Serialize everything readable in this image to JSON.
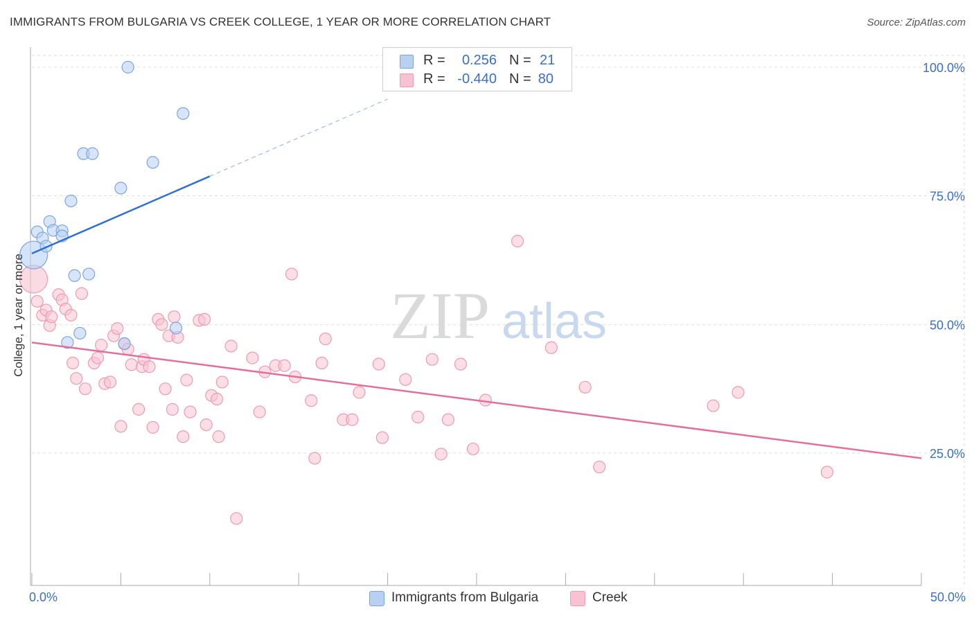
{
  "title": "IMMIGRANTS FROM BULGARIA VS CREEK COLLEGE, 1 YEAR OR MORE CORRELATION CHART",
  "source": "Source: ZipAtlas.com",
  "watermark_zip": "ZIP",
  "watermark_atlas": "atlas",
  "legend": {
    "r_label": "R =",
    "n_label": "N =",
    "bulgaria": {
      "r": "0.256",
      "n": "21"
    },
    "creek": {
      "r": "-0.440",
      "n": "80"
    }
  },
  "bottom_legend": {
    "bulgaria_label": "Immigrants from Bulgaria",
    "creek_label": "Creek"
  },
  "colors": {
    "bulgaria_fill": "#b8d0f2",
    "bulgaria_stroke": "#7aa6e0",
    "bulgaria_line": "#2f6fd0",
    "creek_fill": "#f7c3d2",
    "creek_stroke": "#ee9ab3",
    "creek_line": "#e46f98",
    "axis_text": "#3a6fc9",
    "grid": "#dedede"
  },
  "chart_data": {
    "type": "scatter",
    "title": "IMMIGRANTS FROM BULGARIA VS CREEK COLLEGE, 1 YEAR OR MORE CORRELATION CHART",
    "xlabel": "",
    "ylabel": "College, 1 year or more",
    "xlim": [
      0,
      50
    ],
    "ylim": [
      0,
      102
    ],
    "x_tick_labels": [
      "0.0%",
      "50.0%"
    ],
    "y_ticks": [
      25,
      50,
      75,
      100
    ],
    "y_tick_labels": [
      "25.0%",
      "50.0%",
      "75.0%",
      "100.0%"
    ],
    "series": [
      {
        "name": "Immigrants from Bulgaria",
        "R": 0.256,
        "N": 21,
        "points": [
          [
            0.1,
            63.5,
            "large"
          ],
          [
            0.3,
            68.0
          ],
          [
            0.6,
            66.8
          ],
          [
            0.8,
            65.2
          ],
          [
            1.0,
            70.0
          ],
          [
            1.2,
            68.3
          ],
          [
            1.7,
            68.2
          ],
          [
            1.7,
            67.2
          ],
          [
            2.2,
            74.0
          ],
          [
            2.4,
            59.5
          ],
          [
            2.7,
            48.3
          ],
          [
            2.0,
            46.5
          ],
          [
            3.2,
            59.8
          ],
          [
            2.9,
            83.2
          ],
          [
            3.4,
            83.2
          ],
          [
            5.0,
            76.5
          ],
          [
            5.2,
            46.3
          ],
          [
            5.4,
            100.0
          ],
          [
            6.8,
            81.5
          ],
          [
            8.1,
            49.3
          ],
          [
            8.5,
            91.0
          ]
        ],
        "trend": {
          "x": [
            0,
            10
          ],
          "y": [
            63.8,
            78.8
          ],
          "dashed_x": [
            10,
            20
          ],
          "dashed_y": [
            78.8,
            93.8
          ]
        }
      },
      {
        "name": "Creek",
        "R": -0.44,
        "N": 80,
        "points": [
          [
            0.1,
            58.8,
            "large"
          ],
          [
            0.3,
            54.5
          ],
          [
            0.6,
            51.8
          ],
          [
            0.8,
            52.8
          ],
          [
            1.0,
            49.8
          ],
          [
            1.1,
            51.5
          ],
          [
            1.5,
            55.8
          ],
          [
            1.7,
            54.8
          ],
          [
            1.9,
            53.0
          ],
          [
            2.2,
            51.8
          ],
          [
            2.3,
            42.5
          ],
          [
            2.5,
            39.5
          ],
          [
            2.8,
            56.0
          ],
          [
            3.0,
            37.5
          ],
          [
            3.5,
            42.5
          ],
          [
            3.7,
            43.5
          ],
          [
            3.9,
            46.0
          ],
          [
            4.1,
            38.5
          ],
          [
            4.4,
            38.8
          ],
          [
            4.6,
            47.8
          ],
          [
            4.8,
            49.2
          ],
          [
            5.0,
            30.2
          ],
          [
            5.2,
            46.2
          ],
          [
            5.4,
            45.2
          ],
          [
            5.6,
            42.2
          ],
          [
            6.0,
            33.5
          ],
          [
            6.2,
            41.8
          ],
          [
            6.3,
            43.2
          ],
          [
            6.6,
            41.8
          ],
          [
            6.8,
            30.0
          ],
          [
            7.1,
            51.0
          ],
          [
            7.3,
            50.0
          ],
          [
            7.5,
            37.5
          ],
          [
            7.7,
            47.8
          ],
          [
            7.9,
            33.5
          ],
          [
            8.2,
            47.5
          ],
          [
            8.5,
            28.2
          ],
          [
            8.7,
            39.2
          ],
          [
            8.9,
            33.0
          ],
          [
            9.4,
            50.8
          ],
          [
            9.7,
            51.0
          ],
          [
            9.8,
            30.5
          ],
          [
            10.1,
            36.2
          ],
          [
            10.4,
            35.5
          ],
          [
            10.5,
            28.2
          ],
          [
            10.7,
            38.8
          ],
          [
            11.2,
            45.8
          ],
          [
            11.5,
            12.3
          ],
          [
            12.4,
            43.5
          ],
          [
            12.8,
            33.0
          ],
          [
            13.1,
            40.8
          ],
          [
            13.7,
            42.0
          ],
          [
            14.2,
            42.0
          ],
          [
            14.6,
            59.8
          ],
          [
            14.8,
            39.8
          ],
          [
            15.7,
            35.2
          ],
          [
            15.9,
            24.0
          ],
          [
            16.3,
            42.5
          ],
          [
            16.5,
            47.2
          ],
          [
            17.5,
            31.5
          ],
          [
            18.0,
            31.5
          ],
          [
            18.4,
            36.8
          ],
          [
            19.5,
            42.3
          ],
          [
            19.7,
            28.0
          ],
          [
            21.0,
            39.3
          ],
          [
            21.7,
            32.0
          ],
          [
            22.5,
            43.2
          ],
          [
            23.0,
            24.8
          ],
          [
            23.4,
            31.5
          ],
          [
            24.1,
            42.3
          ],
          [
            24.8,
            25.8
          ],
          [
            25.5,
            35.3
          ],
          [
            27.3,
            66.2
          ],
          [
            29.2,
            45.5
          ],
          [
            31.1,
            37.8
          ],
          [
            31.9,
            22.3
          ],
          [
            38.3,
            34.2
          ],
          [
            39.7,
            36.8
          ],
          [
            44.7,
            21.3
          ],
          [
            8.0,
            51.5
          ]
        ],
        "trend": {
          "x": [
            0,
            50
          ],
          "y": [
            46.5,
            24.0
          ]
        }
      }
    ]
  }
}
